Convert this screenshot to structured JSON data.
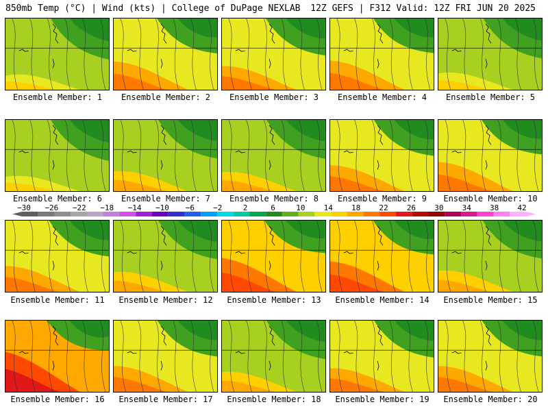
{
  "header": {
    "left": "850mb Temp (°C) | Wind (kts) | College of DuPage NEXLAB",
    "right": "12Z GEFS | F312 Valid: 12Z FRI JUN 20 2025"
  },
  "colorbar": {
    "tick_labels": [
      "−30",
      "−26",
      "−22",
      "−18",
      "−14",
      "−10",
      "−6",
      "−2",
      "2",
      "6",
      "10",
      "14",
      "18",
      "22",
      "26",
      "30",
      "34",
      "38",
      "42"
    ],
    "colors": [
      "#5f5f5f",
      "#7a7a7a",
      "#8f8f8f",
      "#a6a6a6",
      "#b8a6c8",
      "#c27fe0",
      "#d44de8",
      "#a020d0",
      "#7000c0",
      "#3030d0",
      "#2060f0",
      "#00a0ff",
      "#00d8e8",
      "#00c8a0",
      "#00a850",
      "#208c20",
      "#60b020",
      "#a8d020",
      "#e8e820",
      "#ffd000",
      "#ffa800",
      "#ff7800",
      "#ff4800",
      "#e01818",
      "#b80808",
      "#900000",
      "#b0005a",
      "#d81890",
      "#ff40d0",
      "#ff80f0",
      "#ffb0ff"
    ]
  },
  "members": [
    {
      "label": "Ensemble Member: 1",
      "warm": 0.3
    },
    {
      "label": "Ensemble Member: 2",
      "warm": 0.6
    },
    {
      "label": "Ensemble Member: 3",
      "warm": 0.5
    },
    {
      "label": "Ensemble Member: 4",
      "warm": 0.62
    },
    {
      "label": "Ensemble Member: 5",
      "warm": 0.35
    },
    {
      "label": "Ensemble Member: 6",
      "warm": 0.3
    },
    {
      "label": "Ensemble Member: 7",
      "warm": 0.42
    },
    {
      "label": "Ensemble Member: 8",
      "warm": 0.4
    },
    {
      "label": "Ensemble Member: 9",
      "warm": 0.55
    },
    {
      "label": "Ensemble Member: 10",
      "warm": 0.62
    },
    {
      "label": "Ensemble Member: 11",
      "warm": 0.55
    },
    {
      "label": "Ensemble Member: 12",
      "warm": 0.42
    },
    {
      "label": "Ensemble Member: 13",
      "warm": 0.72
    },
    {
      "label": "Ensemble Member: 14",
      "warm": 0.65
    },
    {
      "label": "Ensemble Member: 15",
      "warm": 0.45
    },
    {
      "label": "Ensemble Member: 16",
      "warm": 0.85
    },
    {
      "label": "Ensemble Member: 17",
      "warm": 0.55
    },
    {
      "label": "Ensemble Member: 18",
      "warm": 0.42
    },
    {
      "label": "Ensemble Member: 19",
      "warm": 0.5
    },
    {
      "label": "Ensemble Member: 20",
      "warm": 0.55
    }
  ]
}
